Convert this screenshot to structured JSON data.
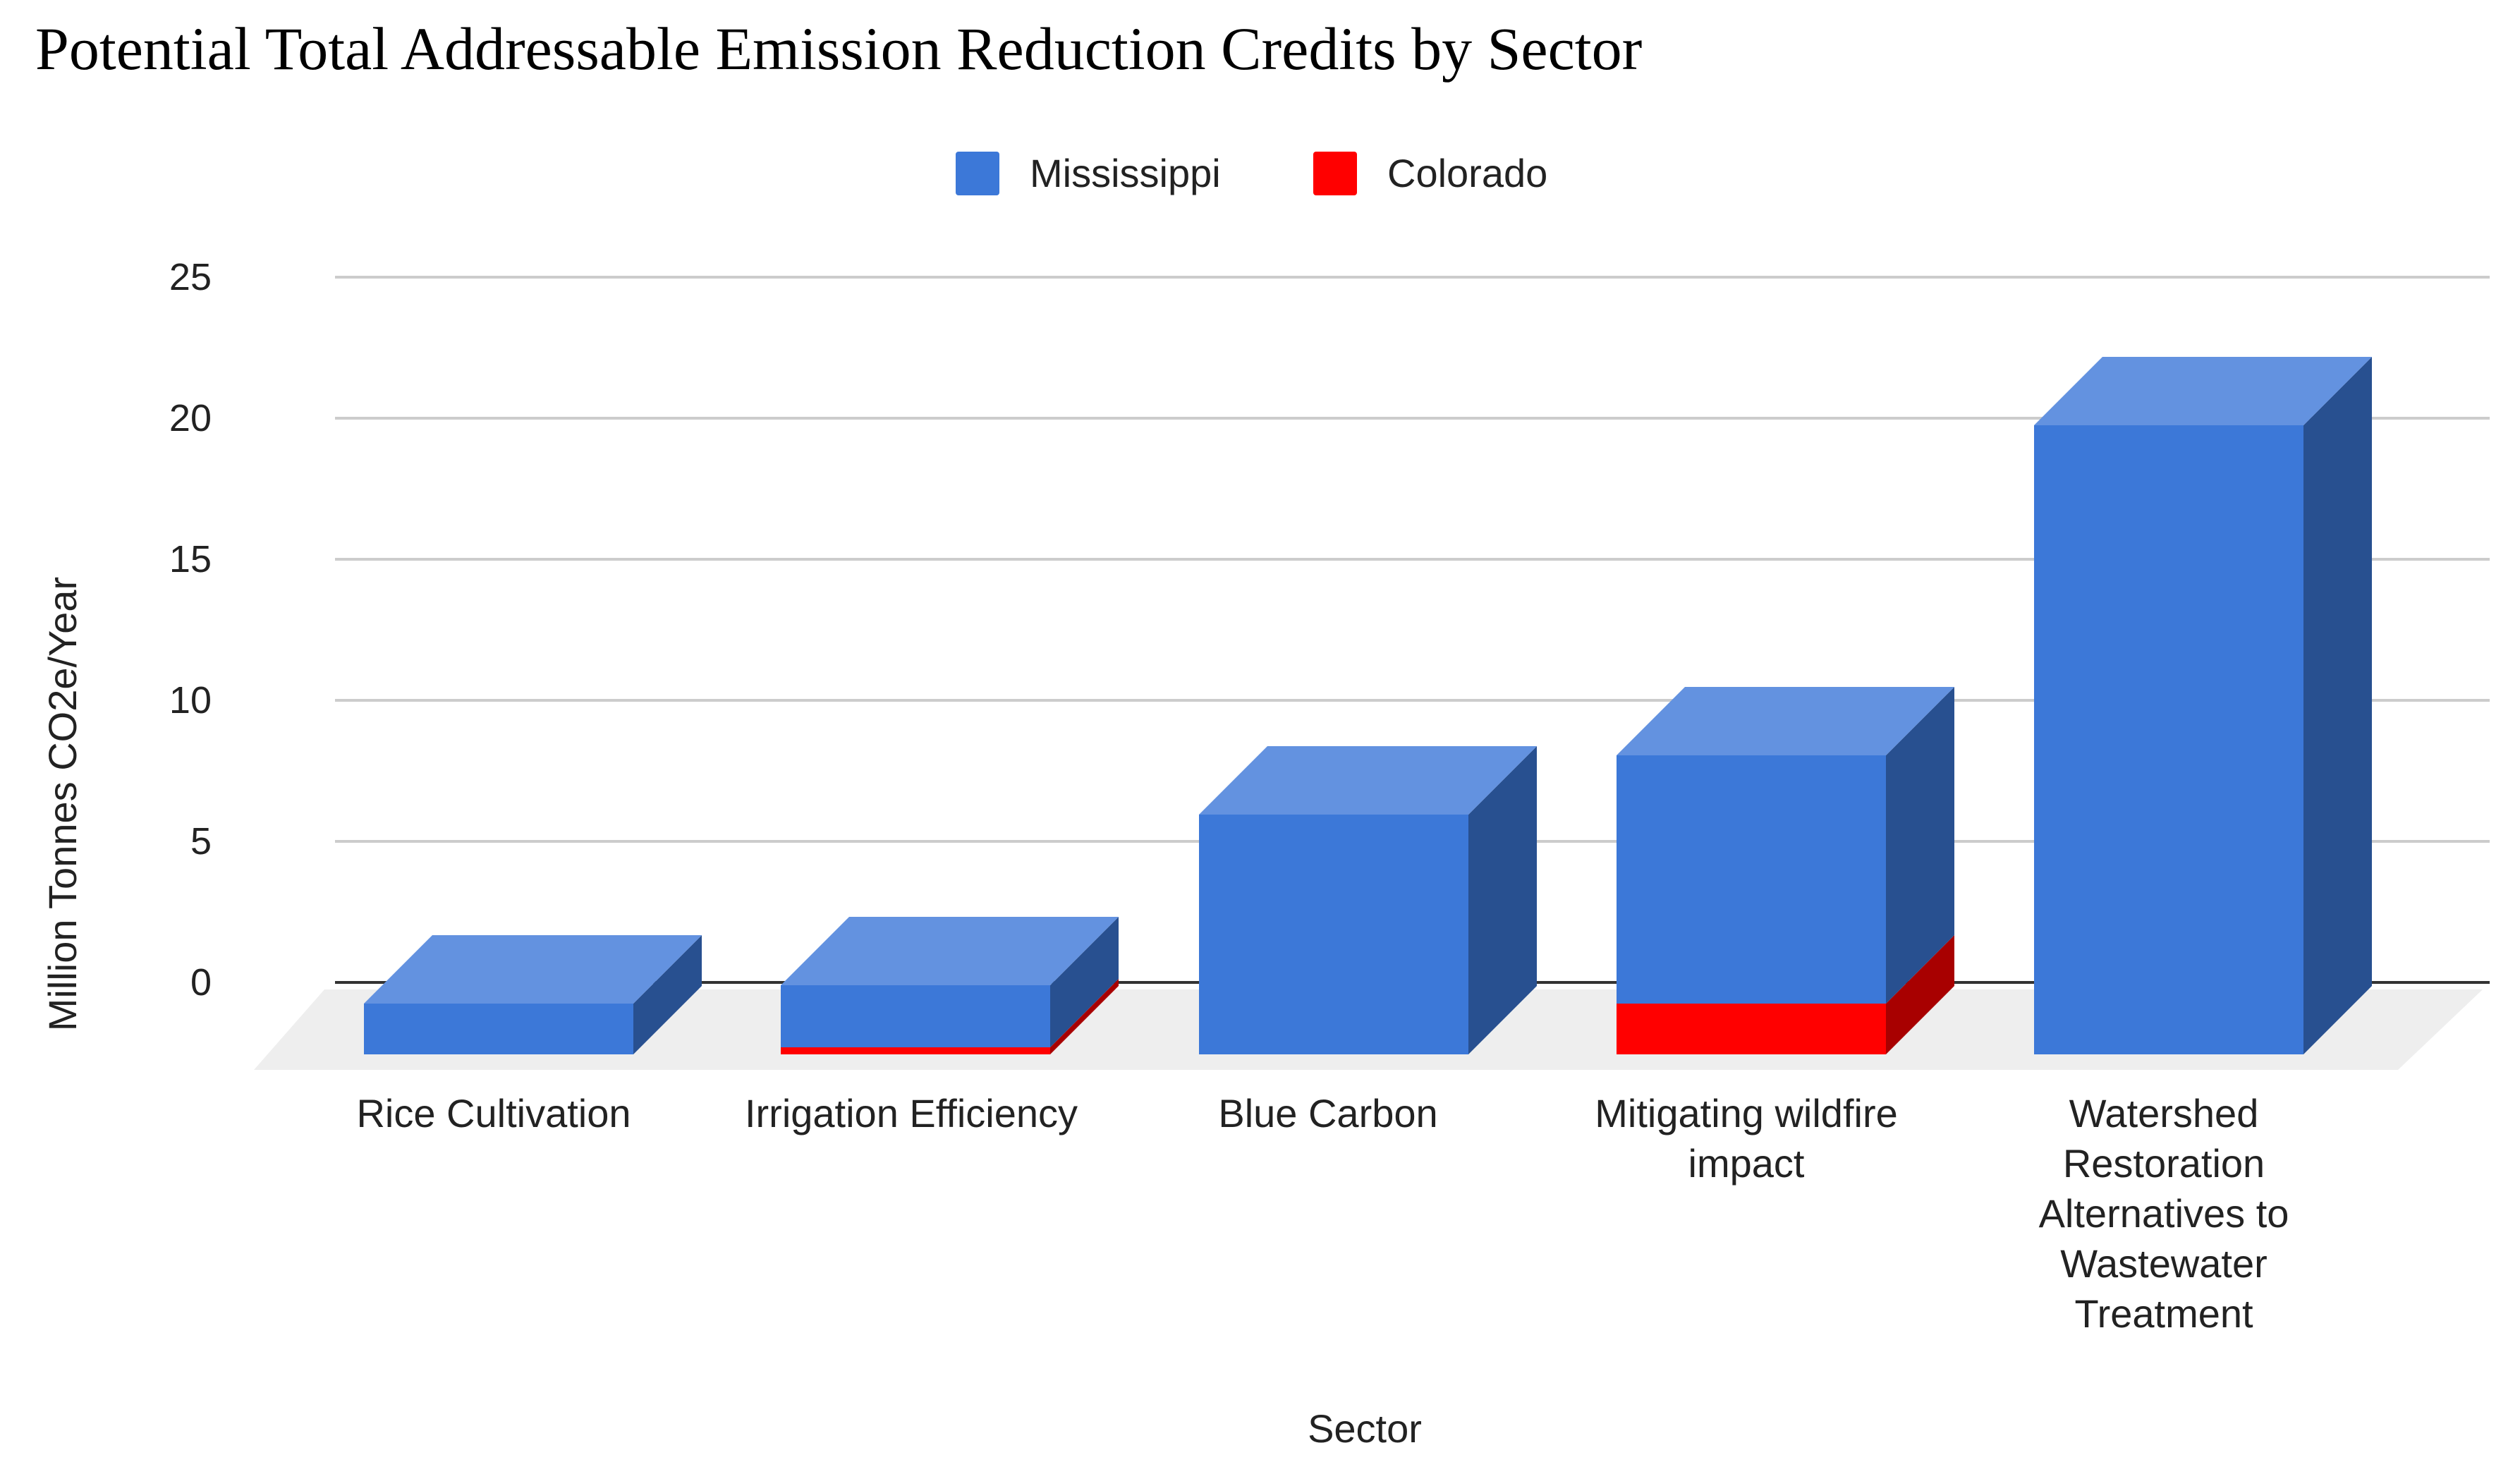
{
  "chart_data": {
    "type": "bar",
    "subtype": "stacked-3d",
    "title": "Potential Total Addressable Emission Reduction Credits by Sector",
    "xlabel": "Sector",
    "ylabel": "Million Tonnes CO2e/Year",
    "ylim": [
      0,
      25
    ],
    "yticks": [
      0,
      5,
      10,
      15,
      20,
      25
    ],
    "grid": true,
    "legend_position": "top-center",
    "categories": [
      [
        "Rice Cultivation"
      ],
      [
        "Irrigation Efficiency"
      ],
      [
        "Blue Carbon"
      ],
      [
        "Mitigating wildfire",
        "impact"
      ],
      [
        "Watershed",
        "Restoration",
        "Alternatives to",
        "Wastewater",
        "Treatment"
      ]
    ],
    "series": [
      {
        "name": "Colorado",
        "color": "#ff0000",
        "side_color": "#a80000",
        "values": [
          0,
          0.25,
          0,
          1.8,
          0
        ]
      },
      {
        "name": "Mississippi",
        "color": "#3c78d8",
        "side_color": "#285090",
        "top_color": "#6392e0",
        "values": [
          1.8,
          2.2,
          8.5,
          8.8,
          22.3
        ]
      }
    ],
    "legend_order": [
      "Mississippi",
      "Colorado"
    ]
  }
}
